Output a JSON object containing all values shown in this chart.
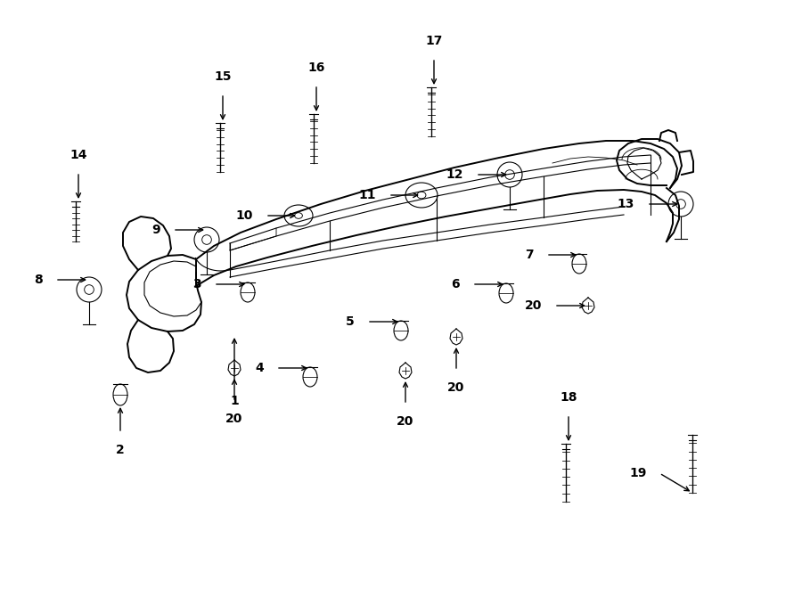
{
  "bg_color": "#ffffff",
  "line_color": "#000000",
  "fig_width": 9.0,
  "fig_height": 6.61,
  "dpi": 100,
  "lw_frame": 1.4,
  "lw_detail": 0.8,
  "lw_thin": 0.6,
  "font_size_label": 10,
  "font_size_num": 10
}
